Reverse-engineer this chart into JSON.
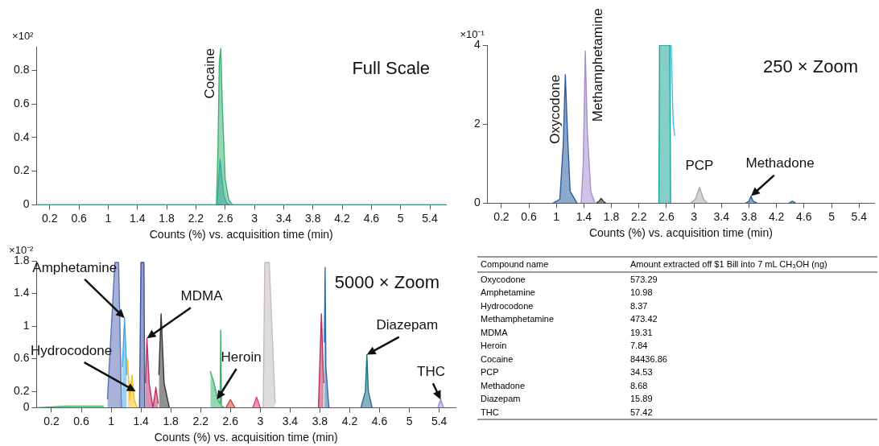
{
  "chart_data": [
    {
      "type": "area",
      "title": "Full Scale",
      "xlabel": "Counts (%) vs. acquisition time (min)",
      "ylabel": "×10²",
      "xlim": [
        0.02,
        5.62
      ],
      "xticks": [
        0.2,
        0.6,
        1,
        1.4,
        1.8,
        2.2,
        2.6,
        3,
        3.4,
        3.8,
        4.2,
        4.6,
        5,
        5.4
      ],
      "ylim": [
        0,
        0.94
      ],
      "yticks": [
        0,
        0.2,
        0.4,
        0.6,
        0.8
      ],
      "grid": false,
      "legend": false,
      "annotations": [
        {
          "text": "Cocaine",
          "x": 2.53,
          "y": 0.93
        }
      ],
      "series": [
        {
          "color": "#3cb371",
          "x": [
            0.02,
            1.0,
            2.48,
            2.5,
            2.52,
            2.54,
            2.56,
            2.6,
            2.65,
            2.7,
            5.62
          ],
          "values": [
            0,
            0,
            0,
            0.3,
            0.85,
            0.93,
            0.6,
            0.15,
            0.03,
            0,
            0
          ]
        },
        {
          "color": "#3a9fd6",
          "x": [
            0.02,
            2.49,
            2.51,
            2.53,
            2.55,
            2.58,
            2.62,
            2.66,
            5.62
          ],
          "values": [
            0,
            0,
            0.15,
            0.27,
            0.18,
            0.06,
            0.01,
            0,
            0
          ]
        }
      ]
    },
    {
      "type": "area",
      "title": "250 × Zoom",
      "xlabel": "Counts (%) vs. acquisition time (min)",
      "ylabel": "×10⁻¹",
      "xlim": [
        0,
        5.62
      ],
      "xticks": [
        0.2,
        0.6,
        1,
        1.4,
        1.8,
        2.2,
        2.6,
        3,
        3.4,
        3.8,
        4.2,
        4.6,
        5,
        5.4
      ],
      "ylim": [
        0,
        4
      ],
      "yticks": [
        0,
        2,
        4
      ],
      "grid": false,
      "legend": false,
      "annotations": [
        {
          "text": "Oxycodone",
          "x": 1.13,
          "y": 3.25
        },
        {
          "text": "Methamphetamine",
          "x": 1.42,
          "y": 3.85
        },
        {
          "text": "PCP",
          "x": 3.08,
          "y": 0.4
        },
        {
          "text": "Methadone",
          "x": 3.83,
          "y": 0.18
        }
      ],
      "series": [
        {
          "color": "#2b5c9e",
          "x": [
            0.95,
            1.05,
            1.1,
            1.13,
            1.16,
            1.2,
            1.3
          ],
          "values": [
            0,
            0.1,
            1.5,
            3.25,
            1.8,
            0.3,
            0
          ]
        },
        {
          "color": "#a58fcf",
          "x": [
            1.36,
            1.39,
            1.42,
            1.45,
            1.5,
            1.56
          ],
          "values": [
            0,
            1.0,
            3.85,
            1.8,
            0.3,
            0
          ]
        },
        {
          "color": "#333333",
          "x": [
            1.58,
            1.62,
            1.65,
            1.68,
            1.72
          ],
          "values": [
            0,
            0.05,
            0.12,
            0.05,
            0
          ]
        },
        {
          "color": "#1aa59a",
          "x": [
            2.49,
            2.5,
            2.65,
            2.66
          ],
          "values": [
            0,
            4,
            4,
            0
          ]
        },
        {
          "type": "line",
          "color": "#4fb8e6",
          "x": [
            2.67,
            2.68,
            2.69,
            2.7,
            2.72
          ],
          "values": [
            4,
            3.2,
            2.5,
            2.0,
            1.7
          ]
        },
        {
          "color": "#b0a8a8",
          "x": [
            2.95,
            3.02,
            3.08,
            3.14,
            3.2
          ],
          "values": [
            0,
            0.1,
            0.4,
            0.1,
            0
          ]
        },
        {
          "color": "#2b5c9e",
          "x": [
            3.75,
            3.8,
            3.83,
            3.86,
            3.92
          ],
          "values": [
            0,
            0.05,
            0.18,
            0.05,
            0
          ]
        },
        {
          "color": "#1f6f8b",
          "x": [
            4.38,
            4.43,
            4.48
          ],
          "values": [
            0,
            0.05,
            0
          ]
        }
      ]
    },
    {
      "type": "area",
      "title": "5000 × Zoom",
      "xlabel": "Counts (%) vs. acquisition time (min)",
      "ylabel": "×10⁻²",
      "xlim": [
        0,
        5.62
      ],
      "xticks": [
        0.2,
        0.6,
        1,
        1.4,
        1.8,
        2.2,
        2.6,
        3,
        3.4,
        3.8,
        4.2,
        4.6,
        5,
        5.4
      ],
      "ylim": [
        0,
        1.8
      ],
      "yticks": [
        0,
        0.2,
        0.6,
        1,
        1.4,
        1.8
      ],
      "grid": false,
      "legend": false,
      "annotations": [
        {
          "text": "Amphetamine",
          "x": 1.18,
          "y": 1.1
        },
        {
          "text": "MDMA",
          "x": 1.48,
          "y": 0.85
        },
        {
          "text": "Hydrocodone",
          "x": 1.33,
          "y": 0.2
        },
        {
          "text": "Heroin",
          "x": 2.42,
          "y": 0.1
        },
        {
          "text": "Diazepam",
          "x": 4.43,
          "y": 0.65
        },
        {
          "text": "THC",
          "x": 5.42,
          "y": 0.1
        }
      ],
      "series": [
        {
          "color": "#3cb371",
          "x": [
            0,
            0.4,
            0.9
          ],
          "values": [
            0,
            0.02,
            0.02
          ]
        },
        {
          "color": "#5b6fb5",
          "x": [
            0.95,
            1.05,
            1.1,
            1.14
          ],
          "values": [
            0.1,
            1.78,
            1.78,
            0
          ]
        },
        {
          "color": "#3fa9e0",
          "x": [
            1.15,
            1.18,
            1.21
          ],
          "values": [
            0.5,
            1.1,
            0.4
          ]
        },
        {
          "color": "#f0c020",
          "x": [
            1.22,
            1.25,
            1.28,
            1.31,
            1.35
          ],
          "values": [
            0.6,
            0.1,
            0.4,
            0.1,
            0
          ]
        },
        {
          "color": "#3d4f9e",
          "x": [
            1.38,
            1.4,
            1.44,
            1.45
          ],
          "values": [
            0,
            1.78,
            1.78,
            0
          ]
        },
        {
          "color": "#c0306a",
          "x": [
            1.46,
            1.48,
            1.51,
            1.56,
            1.6,
            1.63
          ],
          "values": [
            0.3,
            0.85,
            0.3,
            0,
            0.25,
            0.05
          ]
        },
        {
          "color": "#333333",
          "x": [
            1.64,
            1.67,
            1.71,
            1.78
          ],
          "values": [
            0.4,
            1.15,
            0.3,
            0
          ]
        },
        {
          "color": "#3cb371",
          "x": [
            2.33,
            2.38,
            2.43,
            2.46,
            2.47,
            2.48,
            2.52
          ],
          "values": [
            0.45,
            0.3,
            0.1,
            0.05,
            0.95,
            0.02,
            0
          ]
        },
        {
          "color": "#d04040",
          "x": [
            2.54,
            2.6,
            2.66
          ],
          "values": [
            0,
            0.1,
            0
          ]
        },
        {
          "color": "#e0406a",
          "x": [
            2.9,
            2.95,
            3.0
          ],
          "values": [
            0,
            0.13,
            0
          ]
        },
        {
          "color": "#c4bcbc",
          "x": [
            3.04,
            3.06,
            3.12,
            3.2
          ],
          "values": [
            0,
            1.78,
            1.78,
            0.05
          ]
        },
        {
          "color": "#b83060",
          "x": [
            3.78,
            3.82,
            3.85
          ],
          "values": [
            0,
            1.15,
            0.3
          ]
        },
        {
          "color": "#2b6ca8",
          "x": [
            3.86,
            3.87,
            3.88,
            3.92
          ],
          "values": [
            0.8,
            1.72,
            0.5,
            0
          ]
        },
        {
          "color": "#1f6f8b",
          "x": [
            4.35,
            4.41,
            4.43,
            4.45,
            4.5
          ],
          "values": [
            0,
            0.2,
            0.65,
            0.2,
            0
          ]
        },
        {
          "color": "#a58fcf",
          "x": [
            5.38,
            5.42,
            5.46
          ],
          "values": [
            0,
            0.1,
            0
          ]
        }
      ]
    },
    {
      "type": "other",
      "annotations": [
        "Compound name",
        "Amount extracted off $1 Bill into 7 mL CH₃OH (ng)"
      ],
      "data_labels": true,
      "categories": [
        "Oxycodone",
        "Amphetamine",
        "Hydrocodone",
        "Methamphetamine",
        "MDMA",
        "Heroin",
        "Cocaine",
        "PCP",
        "Methadone",
        "Diazepam",
        "THC"
      ],
      "values": [
        573.29,
        10.98,
        8.37,
        473.42,
        19.31,
        7.84,
        84436.86,
        34.53,
        8.68,
        15.89,
        57.42
      ]
    }
  ]
}
